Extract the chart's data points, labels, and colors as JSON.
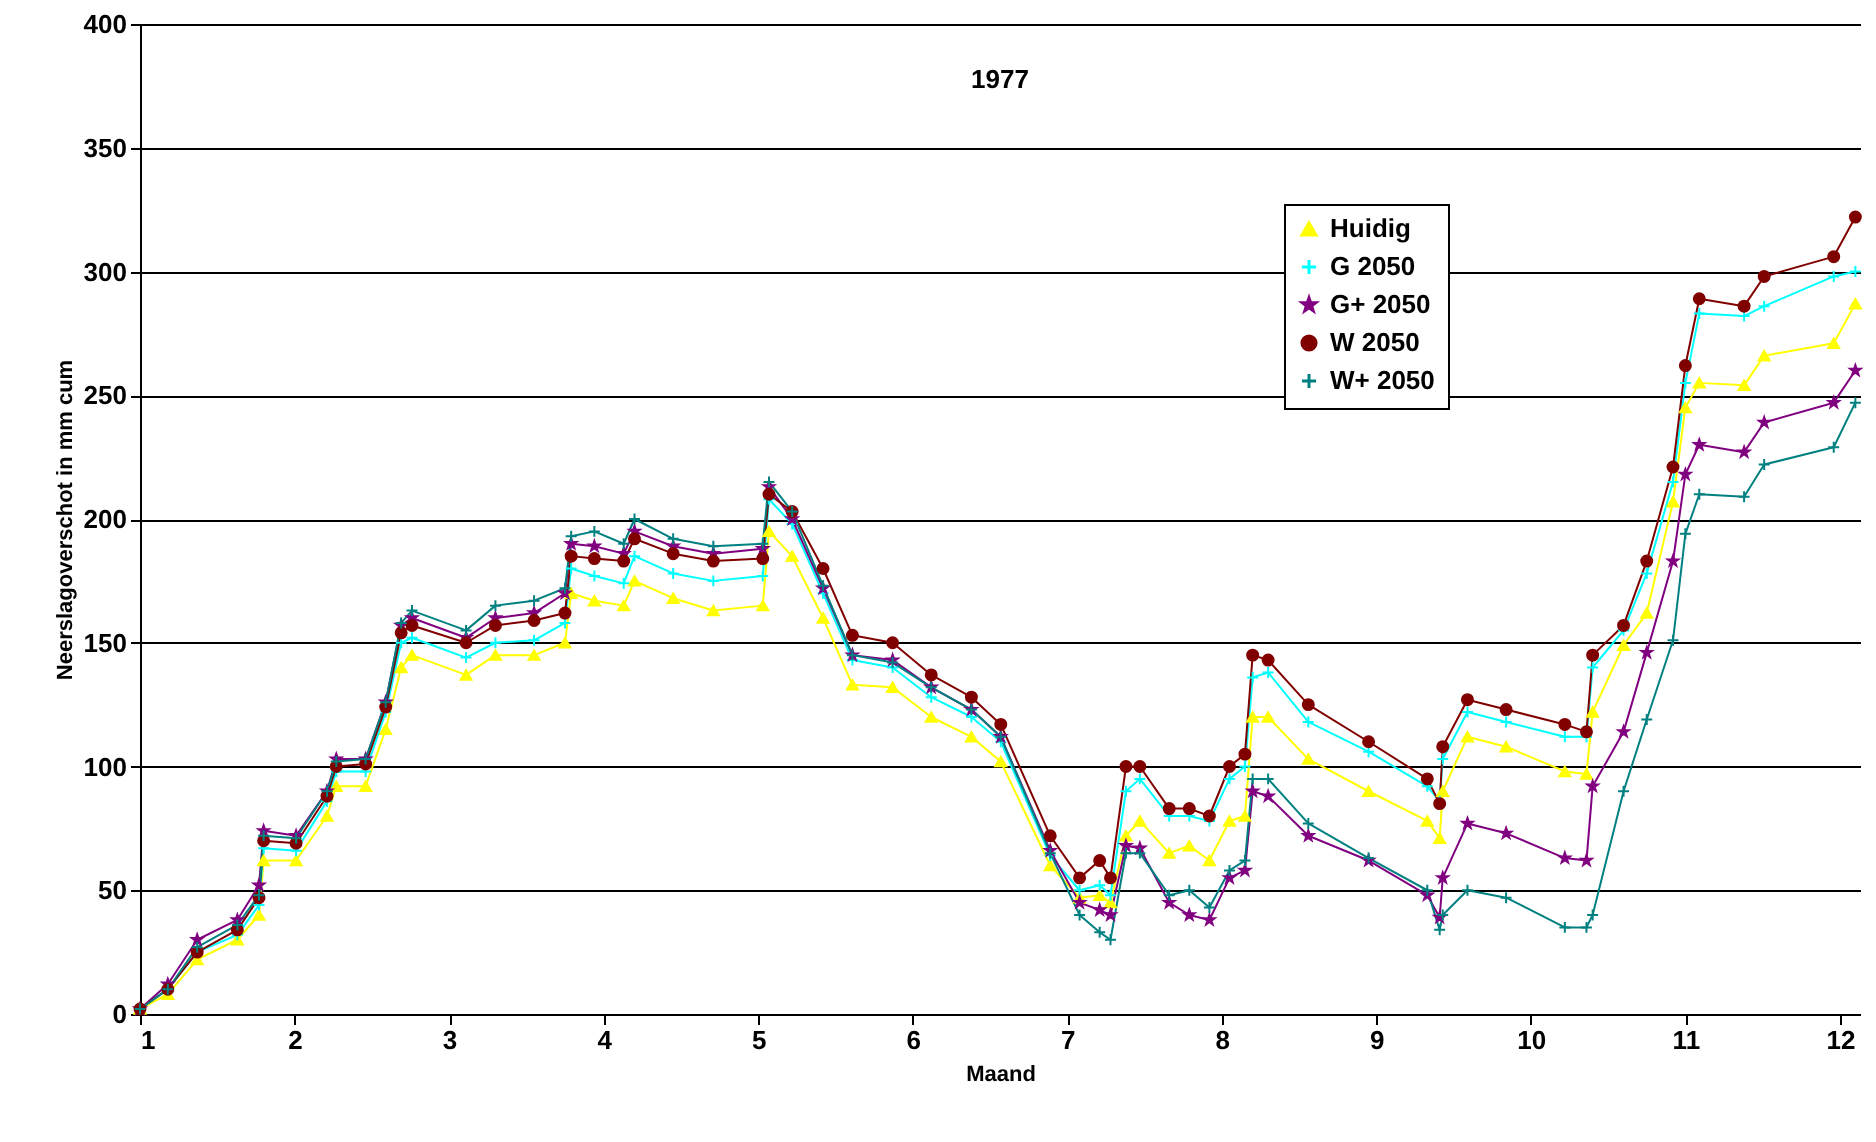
{
  "chart_data": {
    "type": "line",
    "title": "1977",
    "xlabel": "Maand",
    "ylabel": "Neerslagoverschot in mm cum",
    "x": [
      1.0,
      1.18,
      1.37,
      1.63,
      1.77,
      1.8,
      2.01,
      2.21,
      2.27,
      2.46,
      2.59,
      2.69,
      2.76,
      3.11,
      3.3,
      3.55,
      3.75,
      3.79,
      3.94,
      4.13,
      4.2,
      4.45,
      4.71,
      5.03,
      5.07,
      5.22,
      5.42,
      5.61,
      5.87,
      6.12,
      6.38,
      6.57,
      6.89,
      7.08,
      7.21,
      7.28,
      7.38,
      7.47,
      7.66,
      7.79,
      7.92,
      8.05,
      8.15,
      8.2,
      8.3,
      8.56,
      8.95,
      9.33,
      9.41,
      9.43,
      9.59,
      9.84,
      10.22,
      10.36,
      10.4,
      10.6,
      10.75,
      10.92,
      11.0,
      11.09,
      11.38,
      11.51,
      11.96,
      12.1
    ],
    "series": [
      {
        "name": "Huidig",
        "color": "#ffff00",
        "marker": "triangle",
        "values": [
          2,
          8,
          22,
          30,
          40,
          62,
          62,
          80,
          92,
          92,
          115,
          140,
          145,
          137,
          145,
          145,
          150,
          170,
          167,
          165,
          175,
          168,
          163,
          165,
          195,
          185,
          160,
          133,
          132,
          120,
          112,
          102,
          60,
          47,
          48,
          45,
          72,
          78,
          65,
          68,
          62,
          78,
          80,
          120,
          120,
          103,
          90,
          78,
          71,
          90,
          112,
          108,
          98,
          97,
          122,
          149,
          162,
          207,
          245,
          255,
          254,
          266,
          271,
          287
        ]
      },
      {
        "name": "G 2050",
        "color": "#00ffff",
        "marker": "cross",
        "values": [
          2,
          10,
          25,
          32,
          44,
          67,
          66,
          86,
          98,
          98,
          122,
          150,
          152,
          144,
          150,
          151,
          158,
          180,
          177,
          174,
          185,
          178,
          175,
          177,
          208,
          198,
          170,
          143,
          140,
          128,
          120,
          110,
          64,
          50,
          52,
          48,
          90,
          95,
          80,
          80,
          78,
          95,
          100,
          136,
          138,
          118,
          106,
          92,
          86,
          103,
          122,
          118,
          112,
          112,
          140,
          155,
          178,
          215,
          255,
          283,
          282,
          286,
          298,
          300
        ]
      },
      {
        "name": "G+ 2050",
        "color": "#800080",
        "marker": "star",
        "values": [
          2,
          12,
          30,
          38,
          52,
          74,
          72,
          90,
          103,
          103,
          126,
          157,
          160,
          152,
          160,
          162,
          170,
          190,
          189,
          186,
          195,
          189,
          186,
          188,
          213,
          200,
          172,
          145,
          143,
          132,
          123,
          112,
          66,
          45,
          42,
          40,
          68,
          67,
          45,
          40,
          38,
          55,
          58,
          90,
          88,
          72,
          62,
          48,
          39,
          55,
          77,
          73,
          63,
          62,
          92,
          114,
          146,
          183,
          218,
          230,
          227,
          239,
          247,
          260
        ]
      },
      {
        "name": "W 2050",
        "color": "#800000",
        "marker": "circle",
        "values": [
          2,
          10,
          25,
          34,
          47,
          70,
          69,
          88,
          100,
          101,
          124,
          154,
          157,
          150,
          157,
          159,
          162,
          185,
          184,
          183,
          192,
          186,
          183,
          184,
          210,
          203,
          180,
          153,
          150,
          137,
          128,
          117,
          72,
          55,
          62,
          55,
          100,
          100,
          83,
          83,
          80,
          100,
          105,
          145,
          143,
          125,
          110,
          95,
          85,
          108,
          127,
          123,
          117,
          114,
          145,
          157,
          183,
          221,
          262,
          289,
          286,
          298,
          306,
          322
        ]
      },
      {
        "name": "W+ 2050",
        "color": "#008080",
        "marker": "cross",
        "values": [
          2,
          10,
          27,
          36,
          48,
          72,
          71,
          90,
          102,
          103,
          126,
          158,
          163,
          155,
          165,
          167,
          172,
          193,
          195,
          190,
          200,
          192,
          189,
          190,
          215,
          203,
          173,
          145,
          142,
          132,
          123,
          112,
          65,
          40,
          33,
          30,
          65,
          65,
          48,
          50,
          43,
          58,
          62,
          95,
          95,
          77,
          63,
          50,
          34,
          40,
          50,
          47,
          35,
          35,
          40,
          90,
          119,
          151,
          194,
          210,
          209,
          222,
          229,
          247
        ]
      }
    ],
    "xlim": [
      1,
      12.13
    ],
    "xticks": [
      1,
      2,
      3,
      4,
      5,
      6,
      7,
      8,
      9,
      10,
      11,
      12
    ],
    "ylim": [
      0,
      400
    ],
    "yticks": [
      0,
      50,
      100,
      150,
      200,
      250,
      300,
      350,
      400
    ],
    "grid": "y",
    "legend": "top right"
  }
}
